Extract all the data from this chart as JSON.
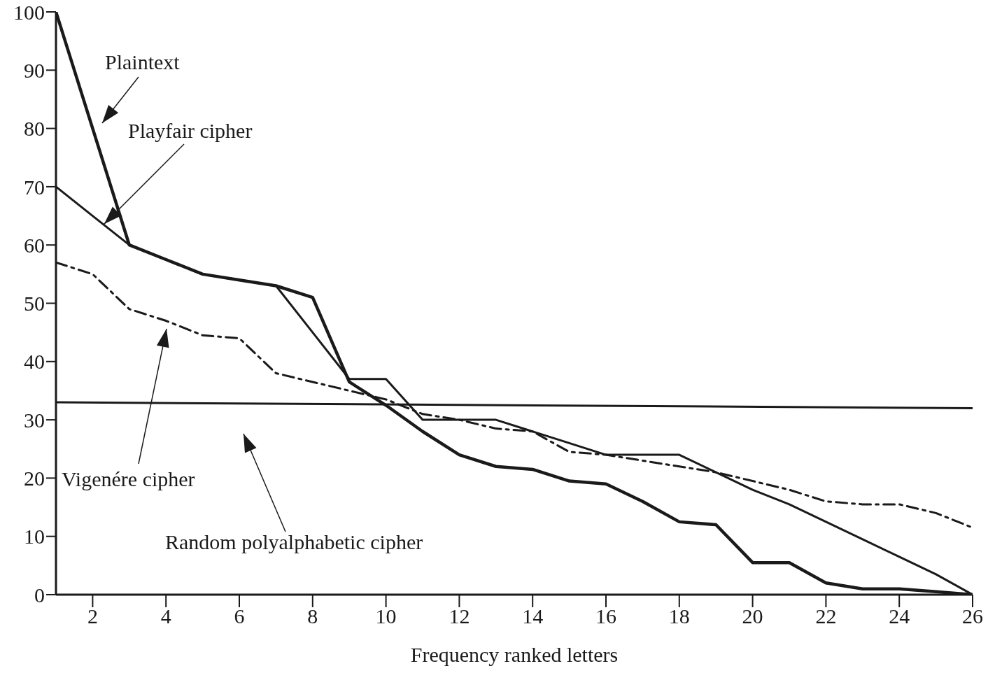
{
  "chart_data": {
    "type": "line",
    "xlabel": "Frequency ranked letters",
    "x": [
      1,
      2,
      3,
      4,
      5,
      6,
      7,
      8,
      9,
      10,
      11,
      12,
      13,
      14,
      15,
      16,
      17,
      18,
      19,
      20,
      21,
      22,
      23,
      24,
      25,
      26
    ],
    "series": [
      {
        "color": "#1a1a1a",
        "values": [
          100,
          80,
          60,
          57.5,
          55,
          54,
          53,
          51,
          36.5,
          32.5,
          28,
          24,
          22,
          21.5,
          19.5,
          19,
          16,
          12.5,
          12,
          5.5,
          5.5,
          2,
          1,
          1,
          0.5,
          0
        ]
      },
      {
        "color": "#1a1a1a",
        "values": [
          70,
          65,
          60,
          57.5,
          55,
          54,
          53,
          45,
          37,
          37,
          30,
          30,
          30,
          28,
          26,
          24,
          24,
          24,
          21,
          18,
          15.5,
          12.5,
          9.5,
          6.5,
          3.5,
          0
        ]
      },
      {
        "color": "#1a1a1a",
        "line_style": "dashed",
        "values": [
          57,
          55,
          49,
          47,
          44.5,
          44,
          38,
          36.5,
          35,
          33.5,
          31,
          30,
          28.5,
          28,
          24.5,
          24,
          23,
          22,
          21,
          19.5,
          18,
          16,
          15.5,
          15.5,
          14,
          11.5
        ]
      },
      {
        "color": "#1a1a1a",
        "x": [
          1,
          26
        ],
        "values": [
          33,
          32
        ]
      }
    ],
    "annotations": [
      "Plaintext",
      {
        "text": "Playfair cipher",
        "x": 2.3,
        "y": 63.5
      },
      "Vigenére cipher",
      "Random polyalphabetic cipher"
    ],
    "xlim": [
      1,
      26
    ],
    "xticks": [
      2,
      4,
      6,
      8,
      10,
      12,
      14,
      16,
      18,
      20,
      22,
      24,
      26
    ],
    "ylim": [
      0,
      100
    ],
    "yticks": [
      0,
      10,
      20,
      30,
      40,
      50,
      60,
      70,
      80,
      90,
      100
    ],
    "grid": false,
    "legend": false,
    "marker": "none",
    "line_style": "solid"
  }
}
